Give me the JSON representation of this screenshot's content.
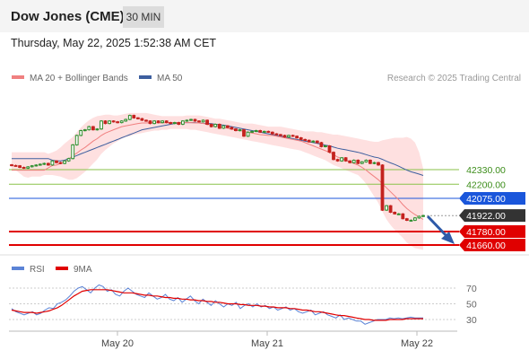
{
  "header": {
    "title": "Dow Jones (CME)",
    "timeframe": "30 MIN"
  },
  "timestamp": "Thursday, May 22, 2025 1:52:38 AM CET",
  "legend": {
    "ma20_label": "MA 20 + Bollinger Bands",
    "ma50_label": "MA 50",
    "copyright": "Research © 2025 Trading Central"
  },
  "rsi_legend": {
    "rsi_label": "RSI",
    "ma_label": "9MA"
  },
  "colors": {
    "up": "#2f8f2f",
    "down": "#c4221f",
    "bands": "#fdd5d5",
    "ma20": "#f08080",
    "ma50": "#3d5f9f",
    "support": "#e00000",
    "resistance": "#8ac24a",
    "pivot": "#1a56db",
    "price_tag": "#333333",
    "rsi": "#5b83d6",
    "rsi_ma": "#e00000"
  },
  "chart_data": [
    {
      "type": "candlestick",
      "title": "Dow Jones (CME) 30 MIN",
      "x_labels": [
        "May 20",
        "May 21",
        "May 22"
      ],
      "y_scale": {
        "price_at_42330": 42330,
        "price_at_41660": 41660
      },
      "levels": [
        {
          "label": "42330.00",
          "value": 42330,
          "kind": "resistance"
        },
        {
          "label": "42200.00",
          "value": 42200,
          "kind": "resistance"
        },
        {
          "label": "42075.00",
          "value": 42075,
          "kind": "pivot"
        },
        {
          "label": "41922.00",
          "value": 41922,
          "kind": "price"
        },
        {
          "label": "41780.00",
          "value": 41780,
          "kind": "support"
        },
        {
          "label": "41660.00",
          "value": 41660,
          "kind": "support"
        }
      ],
      "close": [
        42367,
        42364,
        42350,
        42343,
        42355,
        42364,
        42371,
        42378,
        42385,
        42371,
        42407,
        42392,
        42385,
        42407,
        42428,
        42550,
        42634,
        42677,
        42684,
        42712,
        42684,
        42691,
        42762,
        42740,
        42762,
        42755,
        42748,
        42762,
        42776,
        42812,
        42790,
        42783,
        42769,
        42762,
        42740,
        42762,
        42748,
        42762,
        42748,
        42740,
        42748,
        42733,
        42762,
        42769,
        42776,
        42762,
        42755,
        42769,
        42733,
        42712,
        42733,
        42698,
        42719,
        42705,
        42691,
        42677,
        42684,
        42627,
        42663,
        42670,
        42677,
        42663,
        42670,
        42663,
        42648,
        42641,
        42634,
        42620,
        42634,
        42627,
        42613,
        42598,
        42591,
        42577,
        42584,
        42570,
        42534,
        42541,
        42484,
        42420,
        42407,
        42435,
        42407,
        42392,
        42414,
        42385,
        42399,
        42414,
        42385,
        42392,
        42371,
        41970,
        42009,
        41951,
        41937,
        41937,
        41894,
        41880,
        41880,
        41901,
        41915,
        41922
      ],
      "ma20": [
        42325,
        42325,
        42325,
        42325,
        42325,
        42325,
        42325,
        42325,
        42325,
        42346,
        42367,
        42371,
        42385,
        42399,
        42421,
        42455,
        42477,
        42505,
        42527,
        42555,
        42584,
        42605,
        42634,
        42655,
        42670,
        42684,
        42698,
        42712,
        42719,
        42726,
        42733,
        42740,
        42745,
        42745,
        42748,
        42748,
        42745,
        42745,
        42748,
        42748,
        42748,
        42748,
        42748,
        42748,
        42748,
        42745,
        42745,
        42741,
        42733,
        42726,
        42719,
        42712,
        42705,
        42698,
        42691,
        42684,
        42677,
        42670,
        42663,
        42655,
        42648,
        42641,
        42638,
        42634,
        42634,
        42627,
        42620,
        42613,
        42605,
        42598,
        42591,
        42584,
        42570,
        42555,
        42541,
        42527,
        42513,
        42498,
        42484,
        42463,
        42442,
        42428,
        42414,
        42399,
        42385,
        42371,
        42350,
        42325,
        42296,
        42268,
        42240,
        42204,
        42168,
        42133,
        42097,
        42062,
        42019,
        41984,
        41955,
        41930,
        41909,
        41887
      ],
      "ma50": [
        42428,
        42428,
        42428,
        42428,
        42428,
        42428,
        42428,
        42428,
        42428,
        42428,
        42414,
        42407,
        42407,
        42414,
        42428,
        42442,
        42455,
        42470,
        42484,
        42498,
        42513,
        42527,
        42541,
        42555,
        42570,
        42584,
        42598,
        42613,
        42627,
        42641,
        42655,
        42670,
        42684,
        42691,
        42698,
        42705,
        42712,
        42719,
        42726,
        42733,
        42740,
        42745,
        42748,
        42748,
        42748,
        42748,
        42745,
        42741,
        42741,
        42738,
        42733,
        42729,
        42726,
        42719,
        42712,
        42705,
        42698,
        42691,
        42684,
        42677,
        42670,
        42663,
        42655,
        42648,
        42641,
        42634,
        42627,
        42620,
        42613,
        42605,
        42598,
        42591,
        42584,
        42577,
        42570,
        42563,
        42556,
        42548,
        42541,
        42530,
        42520,
        42513,
        42506,
        42498,
        42491,
        42484,
        42474,
        42463,
        42452,
        42442,
        42435,
        42421,
        42404,
        42390,
        42376,
        42360,
        42343,
        42325,
        42311,
        42301,
        42290,
        42278
      ],
      "bb_upper": [
        42485,
        42485,
        42485,
        42485,
        42485,
        42485,
        42485,
        42485,
        42485,
        42470,
        42484,
        42499,
        42527,
        42562,
        42591,
        42620,
        42663,
        42705,
        42740,
        42769,
        42790,
        42805,
        42812,
        42819,
        42819,
        42812,
        42812,
        42819,
        42826,
        42833,
        42833,
        42833,
        42833,
        42833,
        42826,
        42819,
        42812,
        42805,
        42805,
        42805,
        42805,
        42805,
        42805,
        42812,
        42812,
        42812,
        42812,
        42805,
        42798,
        42790,
        42783,
        42783,
        42776,
        42769,
        42762,
        42755,
        42748,
        42740,
        42740,
        42740,
        42733,
        42726,
        42719,
        42712,
        42712,
        42712,
        42712,
        42705,
        42698,
        42691,
        42684,
        42677,
        42670,
        42670,
        42670,
        42663,
        42663,
        42655,
        42648,
        42641,
        42641,
        42634,
        42627,
        42620,
        42613,
        42606,
        42598,
        42591,
        42584,
        42577,
        42577,
        42591,
        42598,
        42605,
        42613,
        42613,
        42613,
        42620,
        42605,
        42570,
        42484,
        42340
      ],
      "bb_lower": [
        42325,
        42325,
        42296,
        42268,
        42258,
        42268,
        42268,
        42268,
        42282,
        42282,
        42282,
        42275,
        42268,
        42254,
        42240,
        42240,
        42254,
        42282,
        42311,
        42346,
        42385,
        42421,
        42470,
        42505,
        42534,
        42563,
        42584,
        42605,
        42620,
        42627,
        42641,
        42648,
        42655,
        42663,
        42670,
        42677,
        42677,
        42684,
        42684,
        42691,
        42691,
        42691,
        42691,
        42691,
        42684,
        42684,
        42677,
        42670,
        42663,
        42655,
        42648,
        42641,
        42634,
        42627,
        42620,
        42613,
        42605,
        42598,
        42591,
        42584,
        42577,
        42570,
        42563,
        42556,
        42548,
        42541,
        42534,
        42527,
        42520,
        42513,
        42506,
        42498,
        42484,
        42470,
        42456,
        42442,
        42428,
        42414,
        42392,
        42371,
        42357,
        42343,
        42325,
        42311,
        42296,
        42282,
        42247,
        42204,
        42147,
        42090,
        42033,
        41955,
        41887,
        41838,
        41795,
        41760,
        41724,
        41681,
        41653,
        41632,
        41625,
        41617
      ]
    },
    {
      "type": "line",
      "title": "RSI",
      "y_ticks": [
        70,
        50,
        30
      ],
      "series": [
        {
          "name": "RSI",
          "values": [
            44,
            40,
            38,
            36,
            38,
            40,
            36,
            38,
            42,
            45,
            44,
            50,
            52,
            55,
            60,
            66,
            70,
            72,
            68,
            64,
            70,
            74,
            72,
            66,
            68,
            62,
            60,
            66,
            70,
            66,
            62,
            60,
            58,
            64,
            60,
            56,
            58,
            62,
            56,
            54,
            58,
            52,
            56,
            60,
            54,
            50,
            56,
            52,
            48,
            54,
            50,
            46,
            50,
            48,
            52,
            44,
            48,
            50,
            46,
            50,
            46,
            48,
            44,
            46,
            42,
            44,
            46,
            42,
            44,
            40,
            38,
            40,
            42,
            36,
            38,
            40,
            36,
            34,
            32,
            36,
            30,
            32,
            30,
            28,
            28,
            24,
            26,
            28,
            30,
            30,
            30,
            32,
            31,
            32,
            31,
            32,
            33,
            32,
            32,
            32
          ]
        },
        {
          "name": "9MA",
          "values": [
            42,
            41,
            40,
            39,
            39,
            39,
            38,
            39,
            40,
            41,
            43,
            45,
            48,
            52,
            56,
            60,
            63,
            66,
            67,
            68,
            68,
            68,
            68,
            68,
            67,
            66,
            65,
            64,
            64,
            64,
            63,
            62,
            61,
            61,
            60,
            60,
            59,
            58,
            58,
            57,
            57,
            56,
            56,
            55,
            55,
            54,
            54,
            53,
            53,
            52,
            52,
            51,
            50,
            50,
            50,
            49,
            49,
            48,
            48,
            48,
            47,
            47,
            46,
            46,
            45,
            45,
            45,
            44,
            44,
            43,
            42,
            42,
            41,
            40,
            40,
            39,
            38,
            37,
            36,
            35,
            35,
            34,
            33,
            32,
            31,
            30,
            30,
            29,
            29,
            29,
            29,
            30,
            30,
            30,
            30,
            31,
            31,
            31,
            31,
            31
          ]
        }
      ]
    }
  ]
}
